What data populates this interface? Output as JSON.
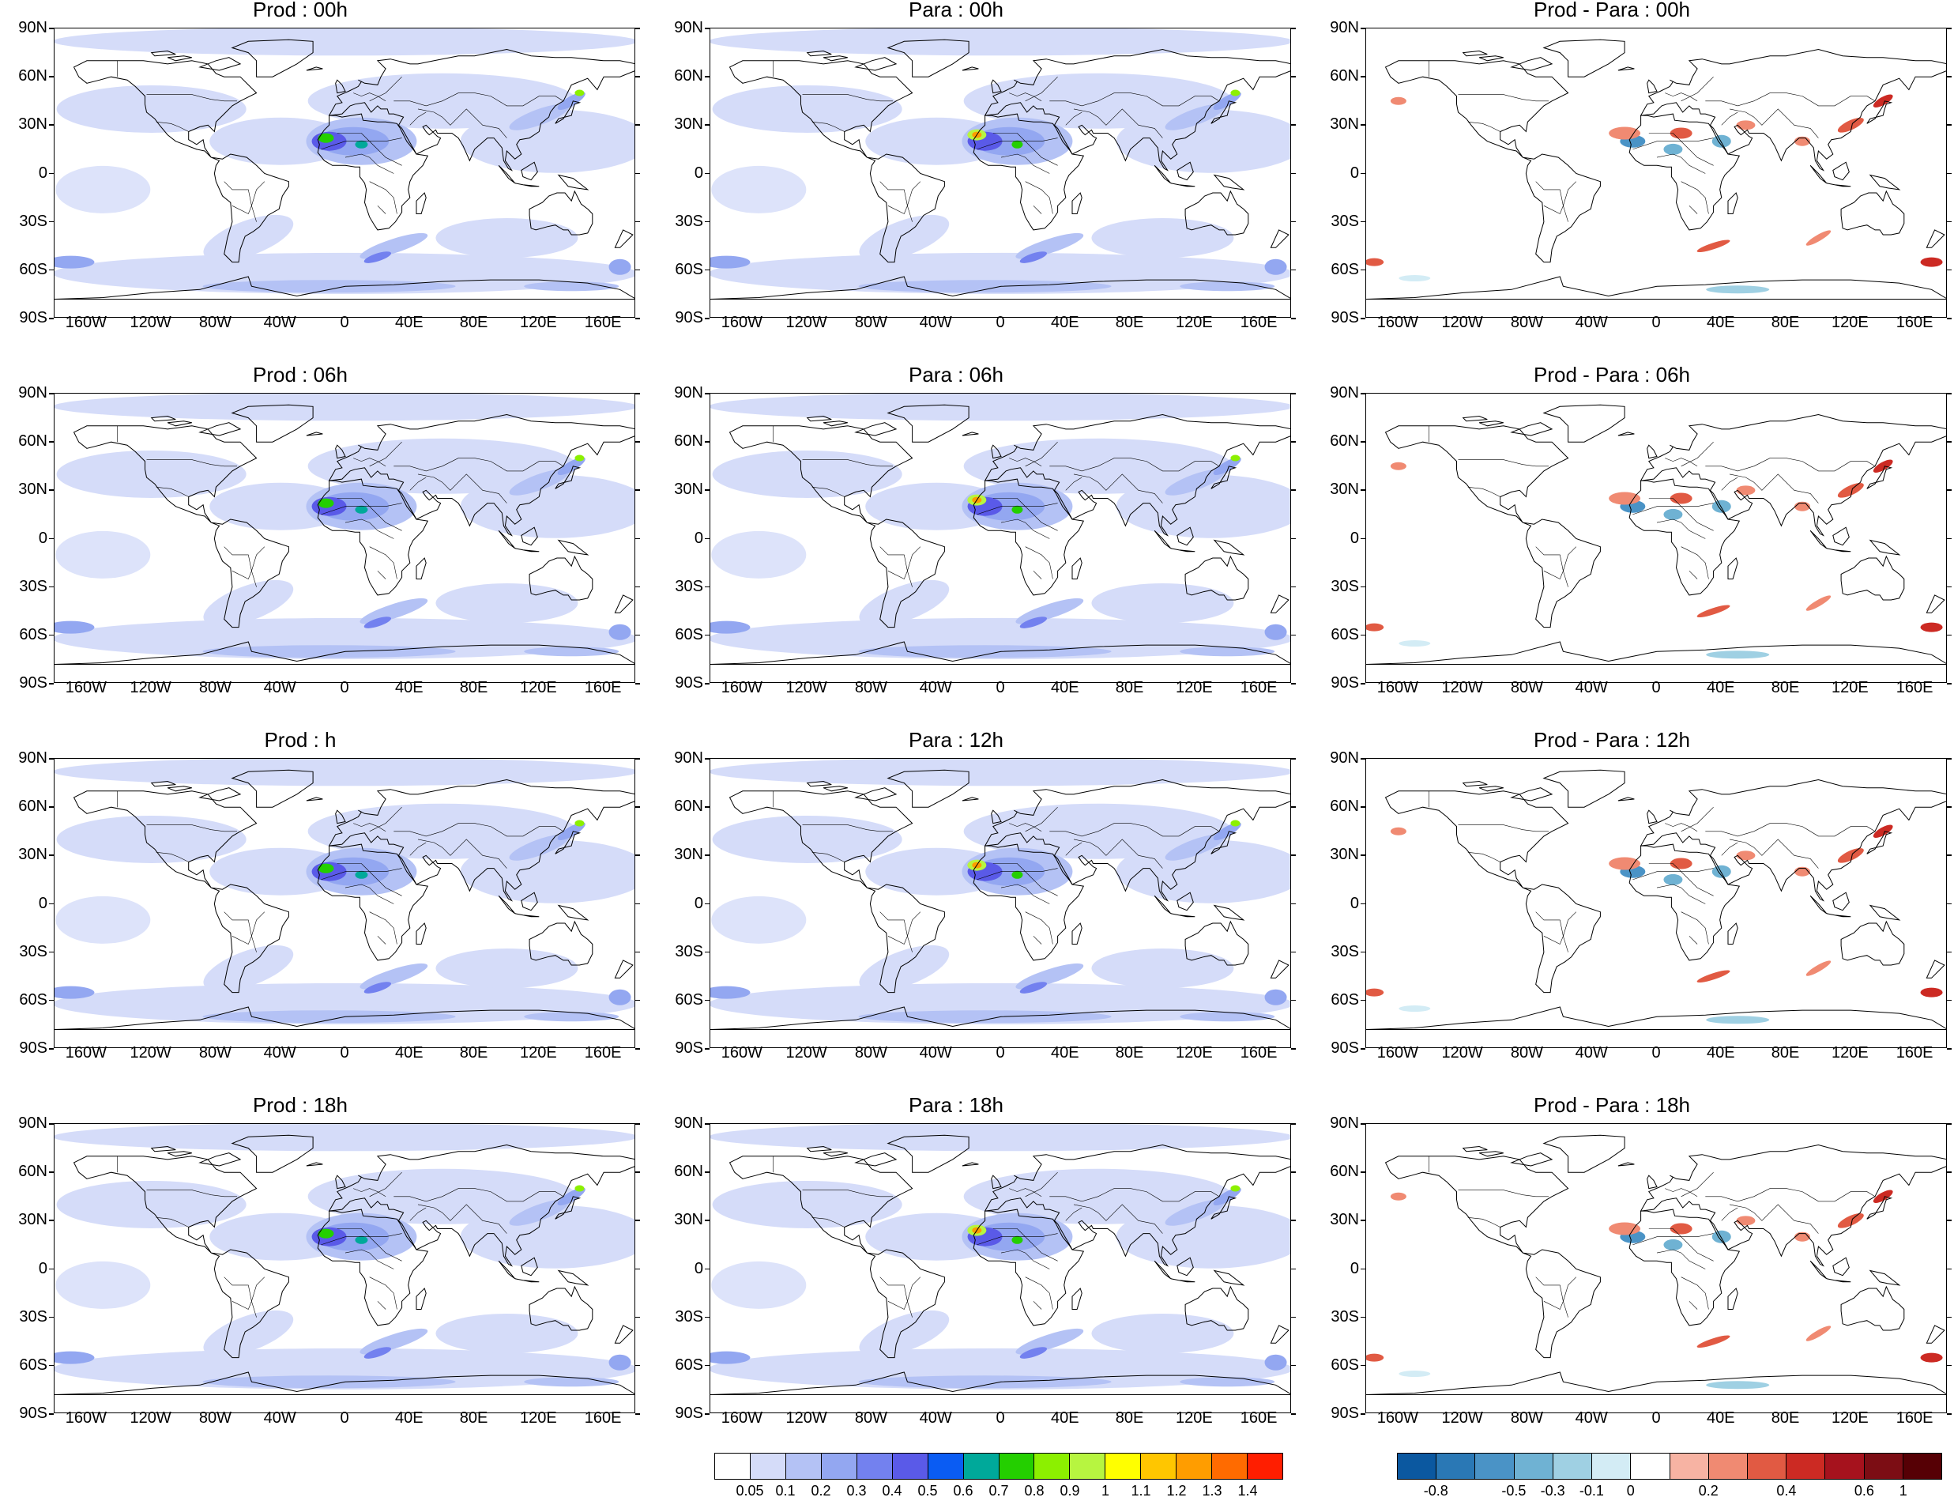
{
  "panels": [
    {
      "title": "Prod : 00h",
      "kind": "field"
    },
    {
      "title": "Para : 00h",
      "kind": "field"
    },
    {
      "title": "Prod - Para : 00h",
      "kind": "diff"
    },
    {
      "title": "Prod : 06h",
      "kind": "field"
    },
    {
      "title": "Para : 06h",
      "kind": "field"
    },
    {
      "title": "Prod - Para : 06h",
      "kind": "diff"
    },
    {
      "title": "Prod : h",
      "kind": "field"
    },
    {
      "title": "Para : 12h",
      "kind": "field"
    },
    {
      "title": "Prod - Para : 12h",
      "kind": "diff"
    },
    {
      "title": "Prod : 18h",
      "kind": "field"
    },
    {
      "title": "Para : 18h",
      "kind": "field"
    },
    {
      "title": "Prod - Para : 18h",
      "kind": "diff"
    }
  ],
  "lat_labels": [
    "90N",
    "60N",
    "30N",
    "0",
    "30S",
    "60S",
    "90S"
  ],
  "lon_labels": [
    "160W",
    "120W",
    "80W",
    "40W",
    "0",
    "40E",
    "80E",
    "120E",
    "160E"
  ],
  "field_colorbar": {
    "colors": [
      "#ffffff",
      "#d5dcf9",
      "#b4c2f5",
      "#93a7f1",
      "#7381ef",
      "#5a5ae8",
      "#0a5cf3",
      "#00a99a",
      "#24cf00",
      "#8cf000",
      "#b7f540",
      "#ffff00",
      "#ffc600",
      "#ff9d00",
      "#ff6b00",
      "#ff1e00"
    ],
    "labels": [
      "0.05",
      "0.1",
      "0.2",
      "0.3",
      "0.4",
      "0.5",
      "0.6",
      "0.7",
      "0.8",
      "0.9",
      "1",
      "1.1",
      "1.2",
      "1.3",
      "1.4"
    ]
  },
  "diff_colorbar": {
    "colors": [
      "#0b58a0",
      "#2a78b5",
      "#4a93c6",
      "#6fb2d3",
      "#9fd0e3",
      "#d3ecf5",
      "#ffffff",
      "#f7b3a3",
      "#f08a72",
      "#e15a43",
      "#cc2a23",
      "#a6121d",
      "#7c0d14",
      "#560005"
    ],
    "labels": [
      "-0.8",
      "-0.5",
      "-0.3",
      "-0.1",
      "0",
      "0.2",
      "0.4",
      "0.6",
      "1"
    ]
  }
}
